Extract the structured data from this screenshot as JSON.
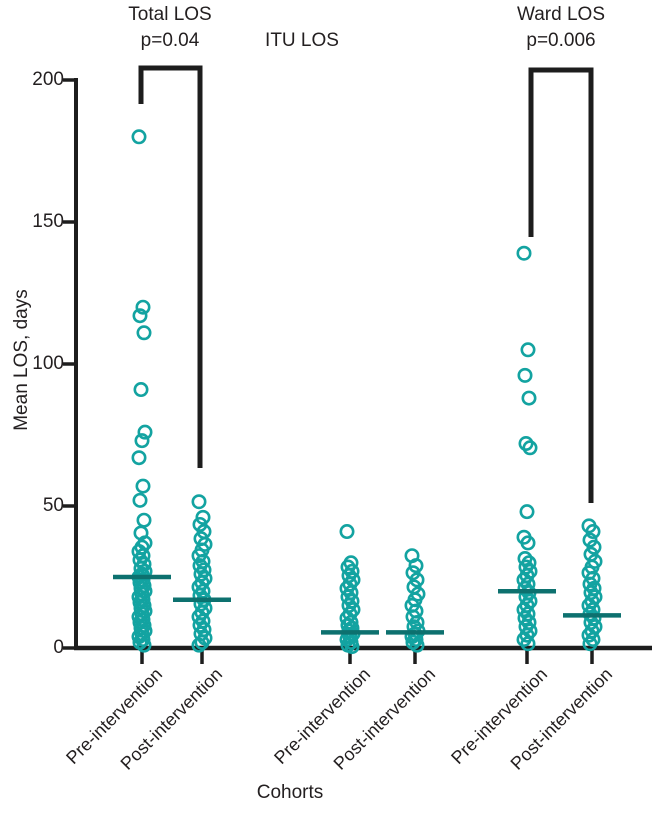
{
  "colors": {
    "marker": "#13a3a1",
    "median": "#0d716f",
    "axis": "#1d1d1d",
    "text": "#231f20"
  },
  "chart_data": {
    "type": "scatter",
    "title": "",
    "xlabel": "Cohorts",
    "ylabel": "Mean LOS, days",
    "ylim": [
      0,
      200
    ],
    "yticks": [
      0,
      50,
      100,
      150,
      200
    ],
    "grid": false,
    "groups": [
      {
        "label": "Total LOS",
        "pvalue": "p=0.04"
      },
      {
        "label": "ITU LOS",
        "pvalue": ""
      },
      {
        "label": "Ward LOS",
        "pvalue": "p=0.006"
      }
    ],
    "series": [
      {
        "group": "Total LOS",
        "cohort": "Pre-intervention",
        "median": 25,
        "values": [
          180,
          120,
          117,
          111,
          91,
          76,
          73,
          67,
          57,
          52,
          45,
          40.5,
          37,
          35.5,
          34,
          32.5,
          31,
          29.5,
          28,
          27,
          26,
          25,
          24,
          23,
          22,
          21,
          20,
          19,
          18,
          17,
          16,
          15,
          14,
          13,
          12,
          11,
          10,
          9,
          8,
          7,
          6,
          5,
          4,
          3,
          2,
          1
        ]
      },
      {
        "group": "Total LOS",
        "cohort": "Post-intervention",
        "median": 17,
        "values": [
          51.5,
          46,
          43.5,
          41,
          38.5,
          36.5,
          34.5,
          32.5,
          30.5,
          29,
          27.5,
          26,
          24.5,
          23,
          21.5,
          20,
          18.5,
          17,
          15.5,
          14,
          12.5,
          11,
          9.5,
          8,
          6.5,
          5,
          3.5,
          2,
          1
        ]
      },
      {
        "group": "ITU LOS",
        "cohort": "Pre-intervention",
        "median": 5.5,
        "values": [
          41,
          30,
          28.5,
          27,
          25.5,
          24,
          22.5,
          21,
          19.5,
          18,
          16.5,
          15,
          13.5,
          12,
          10.5,
          9,
          8,
          7,
          6,
          5,
          4,
          3,
          2,
          1,
          0.5
        ]
      },
      {
        "group": "ITU LOS",
        "cohort": "Post-intervention",
        "median": 5.5,
        "values": [
          32.5,
          29,
          26.5,
          24,
          21.5,
          19,
          17,
          15,
          13,
          11,
          9,
          7.5,
          6,
          5,
          4,
          3,
          2,
          1
        ]
      },
      {
        "group": "Ward LOS",
        "cohort": "Pre-intervention",
        "median": 20,
        "values": [
          139,
          105,
          96,
          88,
          72,
          70.5,
          48,
          39,
          37,
          31.5,
          30,
          28.5,
          27,
          25.5,
          24,
          22.5,
          21,
          19.5,
          18,
          16.5,
          15,
          13.5,
          12,
          10.5,
          9,
          7.5,
          6,
          4.5,
          3,
          1.5
        ]
      },
      {
        "group": "Ward LOS",
        "cohort": "Post-intervention",
        "median": 11.5,
        "values": [
          43,
          41,
          38,
          35.5,
          33,
          30.5,
          28.5,
          26.5,
          24.5,
          22.5,
          21,
          19.5,
          18,
          16.5,
          15,
          13.5,
          12,
          10.5,
          9,
          7.5,
          6,
          4.5,
          3,
          1.5
        ]
      }
    ]
  }
}
